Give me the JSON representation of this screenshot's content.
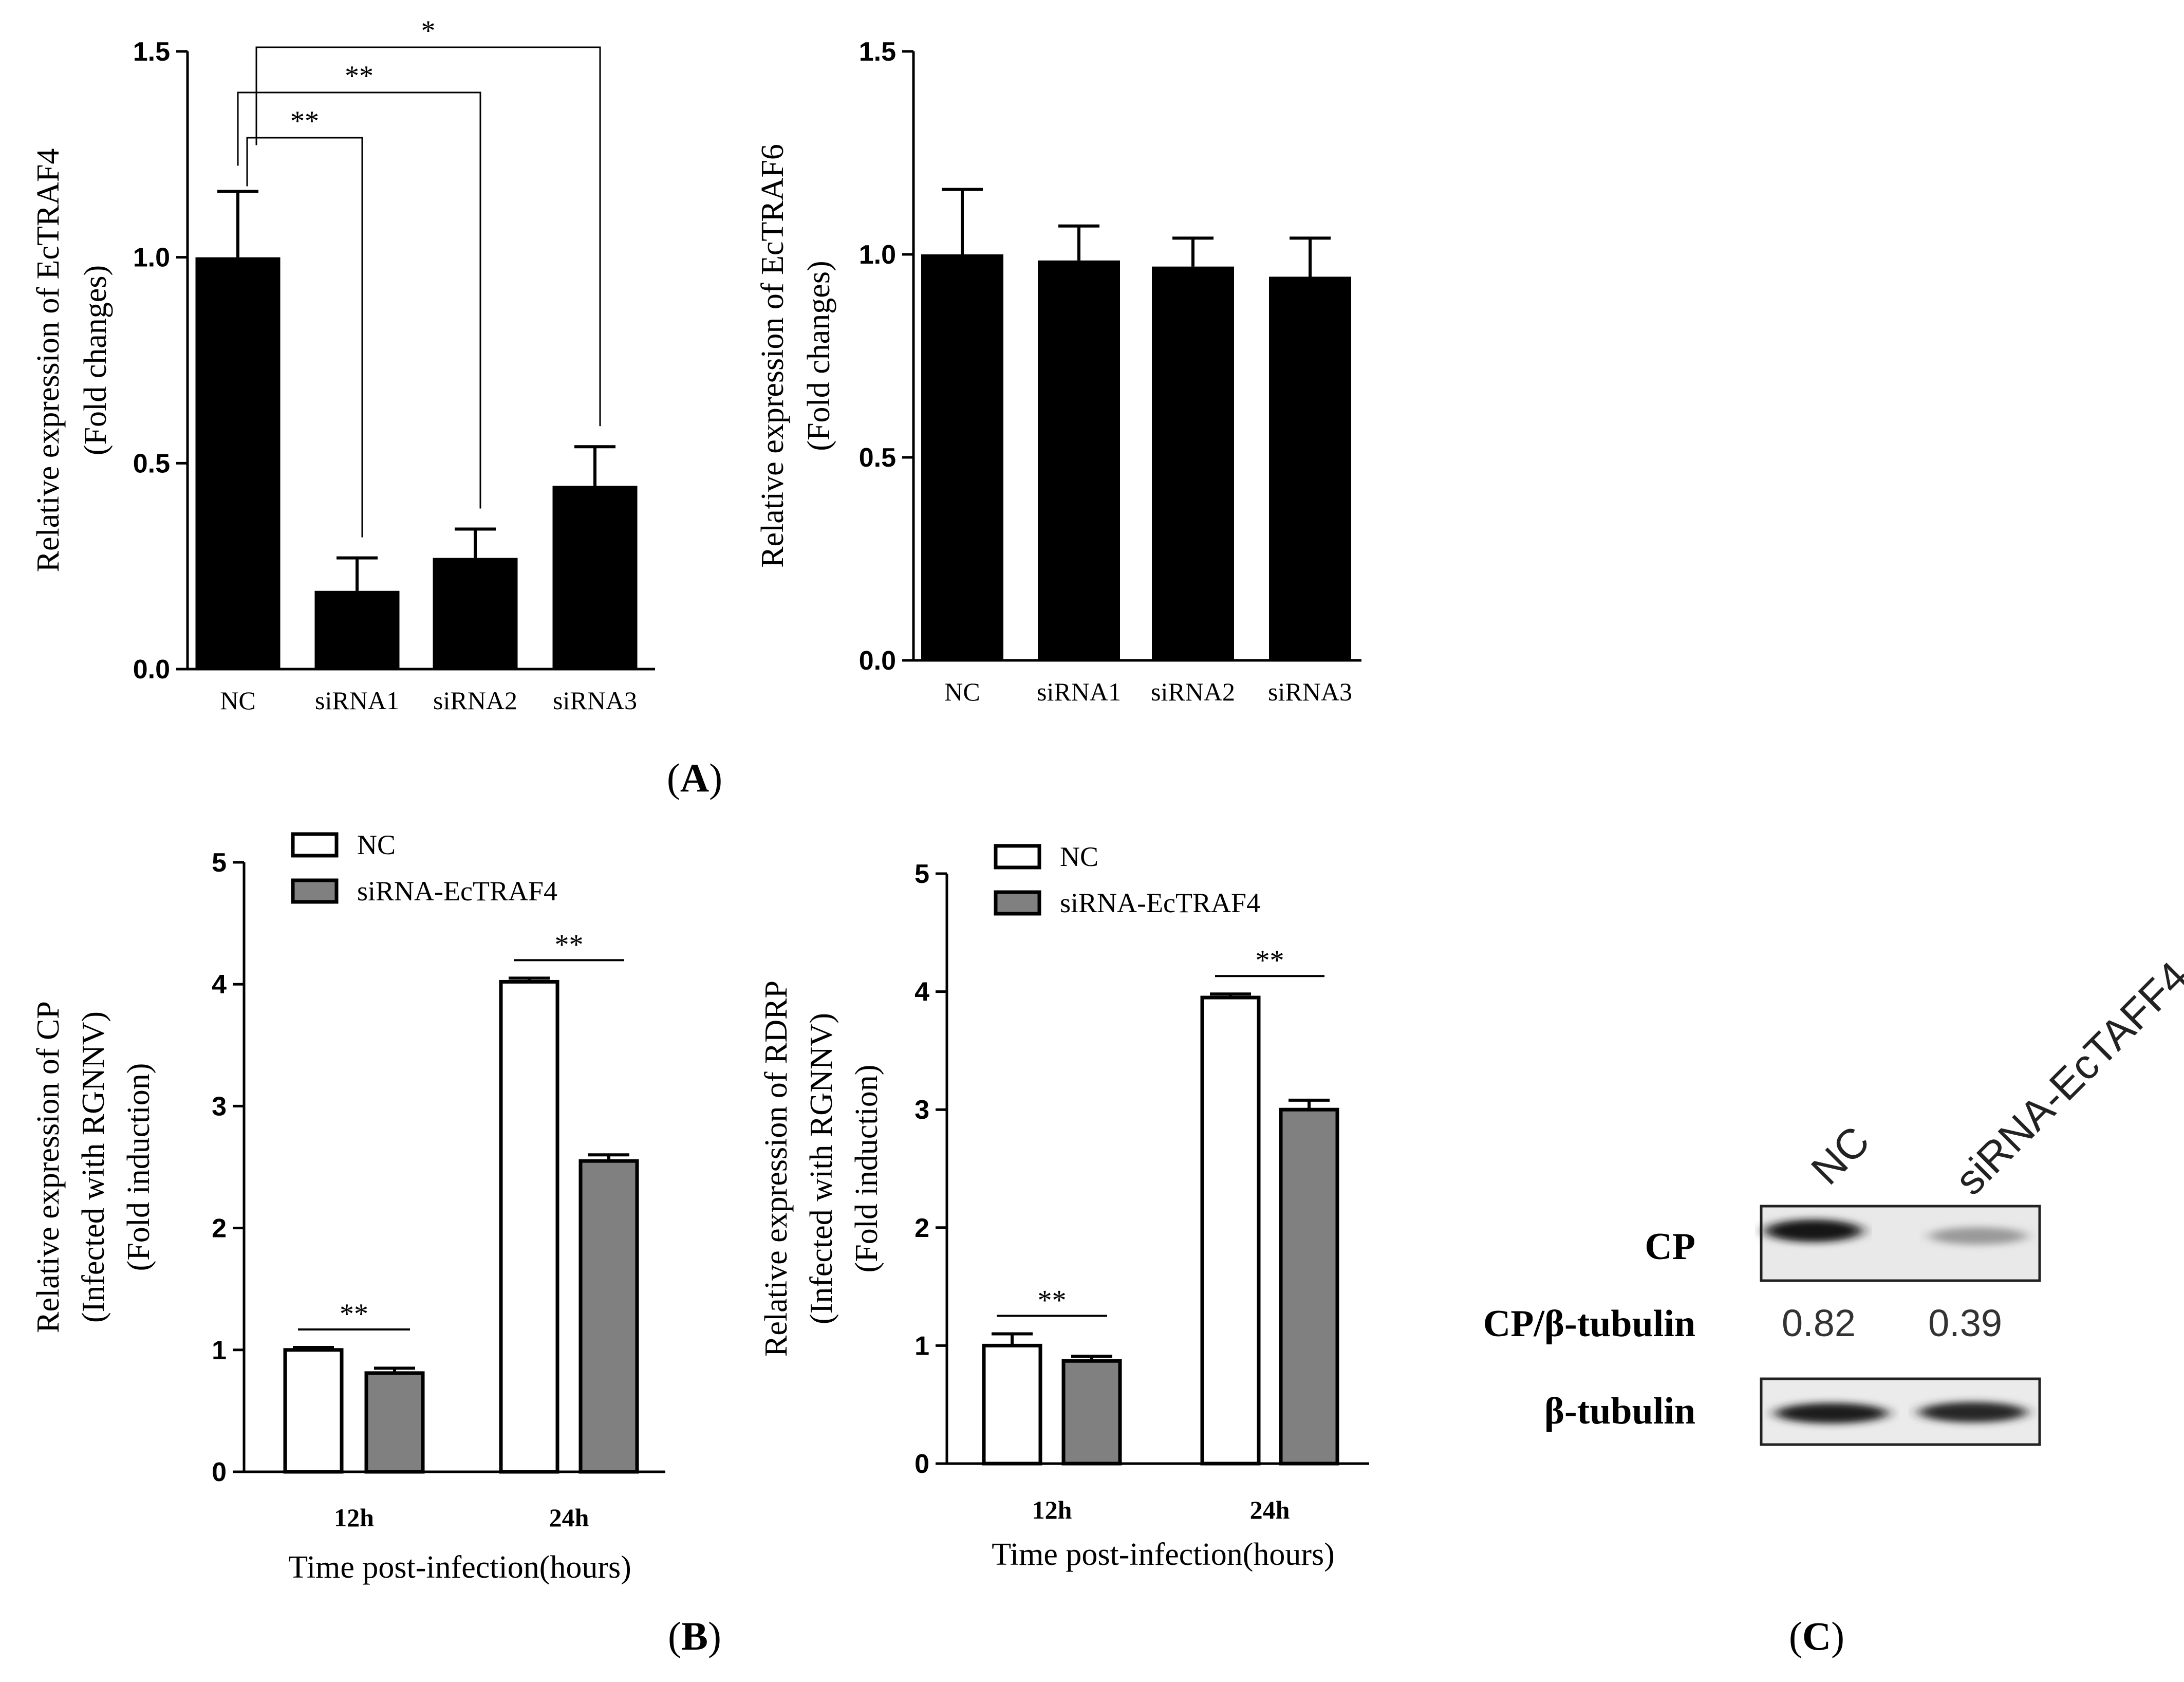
{
  "panels": {
    "A": "A",
    "B": "B",
    "C": "C"
  },
  "chart_data": [
    {
      "id": "A1",
      "type": "bar",
      "categories": [
        "NC",
        "siRNA1",
        "siRNA2",
        "siRNA3"
      ],
      "values": [
        1.0,
        0.19,
        0.27,
        0.445
      ],
      "errors": [
        0.16,
        0.08,
        0.07,
        0.095
      ],
      "ylabel_lines": [
        "Relative expression of  EcTRAF4",
        "(Fold changes)"
      ],
      "ylim": [
        0,
        1.5
      ],
      "yticks": [
        0.0,
        0.5,
        1.0,
        1.5
      ],
      "ytick_labels": [
        "0.0",
        "0.5",
        "1.0",
        "1.5"
      ],
      "bar_color": "#000000",
      "significance": [
        {
          "from": 0,
          "to": 1,
          "label": "**"
        },
        {
          "from": 0,
          "to": 2,
          "label": "**"
        },
        {
          "from": 0,
          "to": 3,
          "label": "*"
        }
      ]
    },
    {
      "id": "A2",
      "type": "bar",
      "categories": [
        "NC",
        "siRNA1",
        "siRNA2",
        "siRNA3"
      ],
      "values": [
        1.0,
        0.985,
        0.97,
        0.945
      ],
      "errors": [
        0.16,
        0.085,
        0.07,
        0.095
      ],
      "ylabel_lines": [
        "Relative expression of  EcTRAF6",
        "(Fold changes)"
      ],
      "ylim": [
        0,
        1.5
      ],
      "yticks": [
        0.0,
        0.5,
        1.0,
        1.5
      ],
      "ytick_labels": [
        "0.0",
        "0.5",
        "1.0",
        "1.5"
      ],
      "bar_color": "#000000"
    },
    {
      "id": "B1",
      "type": "bar",
      "categories": [
        "12h",
        "24h"
      ],
      "series": [
        {
          "name": "NC",
          "values": [
            1.0,
            4.02
          ],
          "errors": [
            0.02,
            0.03
          ],
          "color": "#ffffff"
        },
        {
          "name": "siRNA-EcTRAF4",
          "values": [
            0.81,
            2.55
          ],
          "errors": [
            0.04,
            0.05
          ],
          "color": "#808080"
        }
      ],
      "xlabel": "Time post-infection(hours)",
      "ylabel_lines": [
        "Relative expression of  CP",
        "(Infected with RGNNV)",
        "(Fold induction)"
      ],
      "ylim": [
        0,
        5
      ],
      "yticks": [
        0,
        1,
        2,
        3,
        4,
        5
      ],
      "ytick_labels": [
        "0",
        "1",
        "2",
        "3",
        "4",
        "5"
      ],
      "significance": [
        {
          "group": 0,
          "label": "**"
        },
        {
          "group": 1,
          "label": "**"
        }
      ]
    },
    {
      "id": "B2",
      "type": "bar",
      "categories": [
        "12h",
        "24h"
      ],
      "series": [
        {
          "name": "NC",
          "values": [
            1.0,
            3.95
          ],
          "errors": [
            0.1,
            0.03
          ],
          "color": "#ffffff"
        },
        {
          "name": "siRNA-EcTRAF4",
          "values": [
            0.87,
            3.0
          ],
          "errors": [
            0.04,
            0.08
          ],
          "color": "#808080"
        }
      ],
      "xlabel": "Time post-infection(hours)",
      "ylabel_lines": [
        "Relative expression of  RDRP",
        "(Infected with RGNNV)",
        "(Fold induction)"
      ],
      "ylim": [
        0,
        5
      ],
      "yticks": [
        0,
        1,
        2,
        3,
        4,
        5
      ],
      "ytick_labels": [
        "0",
        "1",
        "2",
        "3",
        "4",
        "5"
      ],
      "significance": [
        {
          "group": 0,
          "label": "**"
        },
        {
          "group": 1,
          "label": "**"
        }
      ]
    }
  ],
  "western_blot": {
    "lanes": [
      "NC",
      "siRNA-EcTAFF4"
    ],
    "rows": [
      {
        "label": "CP",
        "intensities": [
          0.85,
          0.25
        ]
      },
      {
        "label": "β-tubulin",
        "intensities": [
          0.9,
          0.85
        ]
      }
    ],
    "ratio_label": "CP/β-tubulin",
    "ratio_values": [
      "0.82",
      "0.39"
    ]
  }
}
